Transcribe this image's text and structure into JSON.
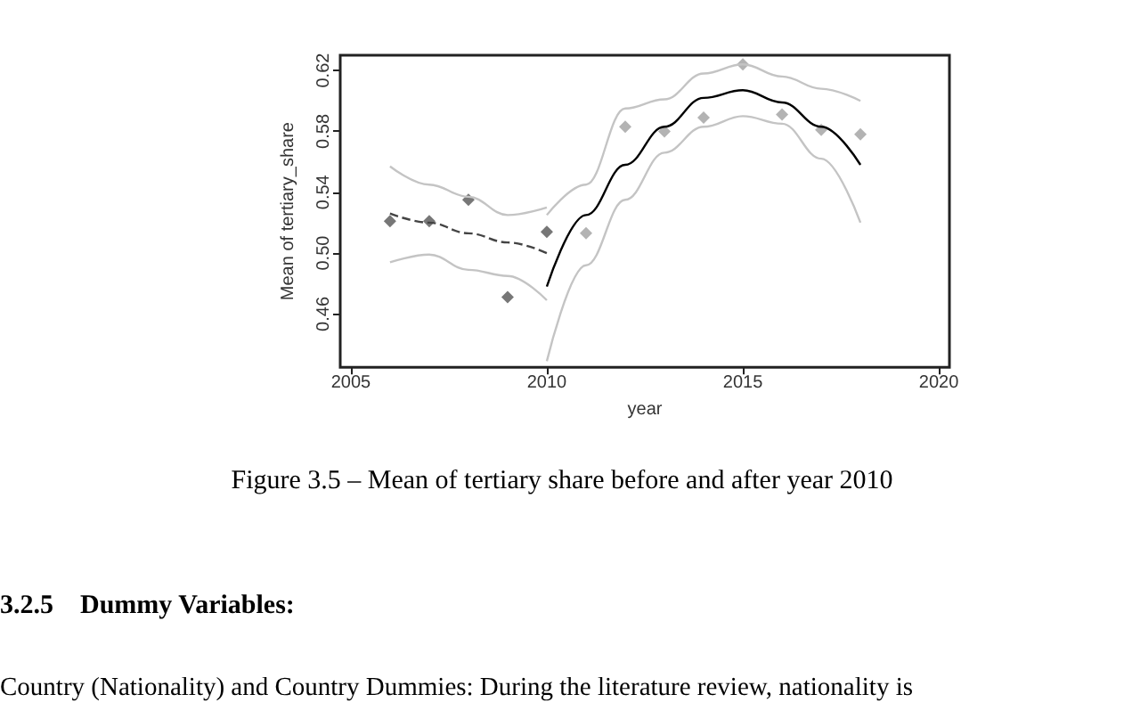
{
  "chart_data": {
    "type": "scatter",
    "xlabel": "year",
    "ylabel": "Mean of tertiary_share",
    "xlim": [
      2004.73,
      2020.27
    ],
    "xticks": [
      2005,
      2010,
      2015,
      2020
    ],
    "ylim": [
      0.425,
      0.63
    ],
    "yticks": [
      0.46,
      {
        "value": 0.5,
        "label": "0.50"
      },
      0.54,
      0.58,
      0.62
    ],
    "series": [
      {
        "color": "#555555",
        "marker": "diamond",
        "x": [
          2006,
          2007,
          2008,
          2009,
          2010
        ],
        "values": [
          0.521,
          0.521,
          0.535,
          0.471,
          0.514
        ]
      },
      {
        "color": "#a0a0a0",
        "marker": "diamond",
        "x": [
          2011,
          2012,
          2013,
          2014,
          2015,
          2016,
          2017,
          2018
        ],
        "values": [
          0.513,
          0.583,
          0.58,
          0.589,
          0.624,
          0.591,
          0.581,
          0.578
        ]
      },
      {
        "type": "line",
        "color": "#444444",
        "marker": "none",
        "line_style": "dashed",
        "x": [
          2006,
          2007,
          2008,
          2009,
          2010
        ],
        "values": [
          0.526,
          0.52,
          0.513,
          0.507,
          0.5
        ]
      },
      {
        "type": "line",
        "color": "#c4c4c4",
        "marker": "none",
        "line_style": "solid",
        "x": [
          2006,
          2007,
          2008,
          2009,
          2010
        ],
        "values": [
          0.557,
          0.545,
          0.537,
          0.525,
          0.53
        ]
      },
      {
        "type": "line",
        "color": "#c4c4c4",
        "marker": "none",
        "line_style": "solid",
        "x": [
          2006,
          2007,
          2008,
          2009,
          2010
        ],
        "values": [
          0.494,
          0.499,
          0.489,
          0.485,
          0.469
        ]
      },
      {
        "type": "line",
        "color": "#000000",
        "marker": "none",
        "line_style": "solid",
        "x": [
          2010,
          2011,
          2012,
          2013,
          2014,
          2015,
          2016,
          2017,
          2018
        ],
        "values": [
          0.478,
          0.525,
          0.558,
          0.583,
          0.602,
          0.607,
          0.599,
          0.583,
          0.558
        ]
      },
      {
        "type": "line",
        "color": "#c4c4c4",
        "marker": "none",
        "line_style": "solid",
        "x": [
          2010,
          2011,
          2012,
          2013,
          2014,
          2015,
          2016,
          2017,
          2018
        ],
        "values": [
          0.525,
          0.545,
          0.595,
          0.601,
          0.618,
          0.624,
          0.616,
          0.608,
          0.6
        ]
      },
      {
        "type": "line",
        "color": "#c4c4c4",
        "marker": "none",
        "line_style": "solid",
        "x": [
          2010,
          2011,
          2012,
          2013,
          2014,
          2015,
          2016,
          2017,
          2018
        ],
        "values": [
          0.429,
          0.492,
          0.535,
          0.566,
          0.583,
          0.59,
          0.585,
          0.562,
          0.52
        ]
      }
    ],
    "annotations": [
      "Figure 3.5 – Mean of tertiary share before and after year 2010",
      "3.2.5    Dummy Variables:",
      "Country (Nationality) and Country Dummies: During the literature review, nationality is"
    ]
  }
}
